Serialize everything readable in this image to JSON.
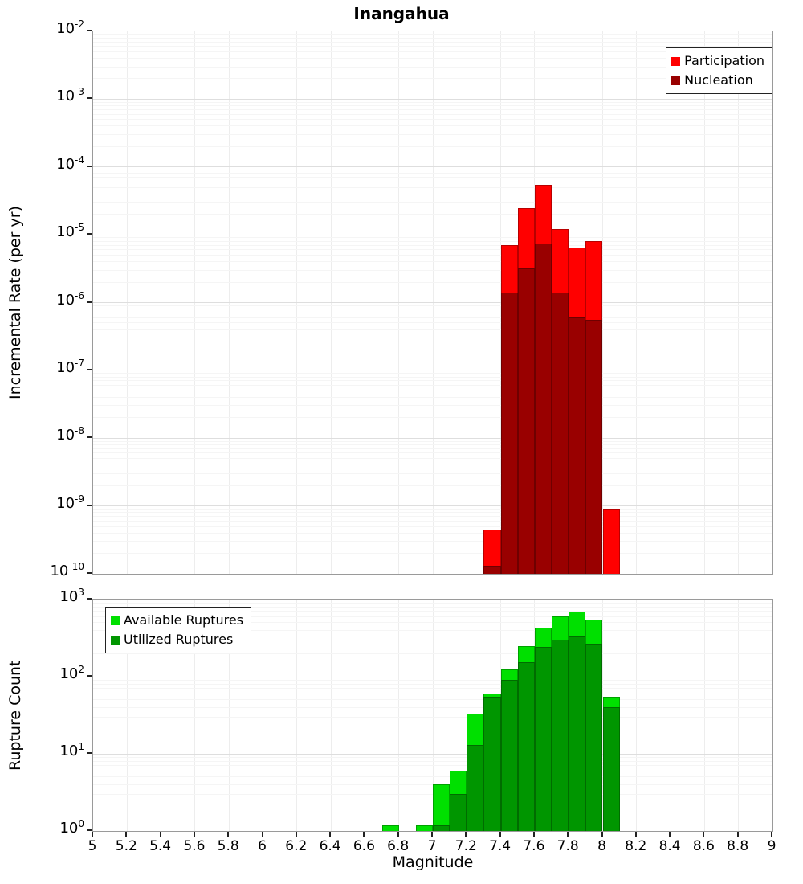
{
  "title": "Inangahua",
  "x_axis": {
    "label": "Magnitude",
    "min": 5,
    "max": 9,
    "tick_values": [
      5,
      5.2,
      5.4,
      5.6,
      5.8,
      6,
      6.2,
      6.4,
      6.6,
      6.8,
      7,
      7.2,
      7.4,
      7.6,
      7.8,
      8,
      8.2,
      8.4,
      8.6,
      8.8,
      9
    ],
    "tick_labels": [
      "5",
      "5.2",
      "5.4",
      "5.6",
      "5.8",
      "6",
      "6.2",
      "6.4",
      "6.6",
      "6.8",
      "7",
      "7.2",
      "7.4",
      "7.6",
      "7.8",
      "8",
      "8.2",
      "8.4",
      "8.6",
      "8.8",
      "9"
    ]
  },
  "chart_data": [
    {
      "type": "bar",
      "id": "rate",
      "title": "Inangahua",
      "ylabel": "Incremental Rate (per yr)",
      "yscale": "log",
      "ylim": [
        1e-10,
        0.01
      ],
      "xlim": [
        5,
        9
      ],
      "bin_width": 0.1,
      "grid": true,
      "y_tick_exponents": [
        -2,
        -3,
        -4,
        -5,
        -6,
        -7,
        -8,
        -9,
        -10
      ],
      "legend_position": "top-right",
      "series": [
        {
          "name": "Participation",
          "color": "#ff0000",
          "bins_left_edge": [
            7.3,
            7.4,
            7.5,
            7.6,
            7.7,
            7.8,
            7.9,
            8.0
          ],
          "values": [
            4.5e-10,
            7e-06,
            2.5e-05,
            5.5e-05,
            1.2e-05,
            6.5e-06,
            8e-06,
            9e-10
          ]
        },
        {
          "name": "Nucleation",
          "color": "#990000",
          "bins_left_edge": [
            7.3,
            7.4,
            7.5,
            7.6,
            7.7,
            7.8,
            7.9
          ],
          "values": [
            1.3e-10,
            1.4e-06,
            3.2e-06,
            7.5e-06,
            1.4e-06,
            6e-07,
            5.5e-07
          ]
        }
      ]
    },
    {
      "type": "bar",
      "id": "count",
      "ylabel": "Rupture Count",
      "yscale": "log",
      "ylim": [
        1,
        1000
      ],
      "xlim": [
        5,
        9
      ],
      "bin_width": 0.1,
      "grid": true,
      "y_tick_exponents": [
        3,
        2,
        1,
        0
      ],
      "legend_position": "top-left",
      "series": [
        {
          "name": "Available Ruptures",
          "color": "#00e000",
          "bins_left_edge": [
            6.7,
            6.9,
            7.0,
            7.1,
            7.2,
            7.3,
            7.4,
            7.5,
            7.6,
            7.7,
            7.8,
            7.9,
            8.0
          ],
          "values": [
            1,
            1,
            4,
            6,
            33,
            60,
            125,
            250,
            430,
            600,
            690,
            550,
            55
          ]
        },
        {
          "name": "Utilized Ruptures",
          "color": "#009600",
          "bins_left_edge": [
            7.0,
            7.1,
            7.2,
            7.3,
            7.4,
            7.5,
            7.6,
            7.7,
            7.8,
            7.9,
            8.0
          ],
          "values": [
            1,
            3,
            13,
            55,
            90,
            155,
            240,
            300,
            330,
            270,
            40
          ]
        }
      ]
    }
  ]
}
